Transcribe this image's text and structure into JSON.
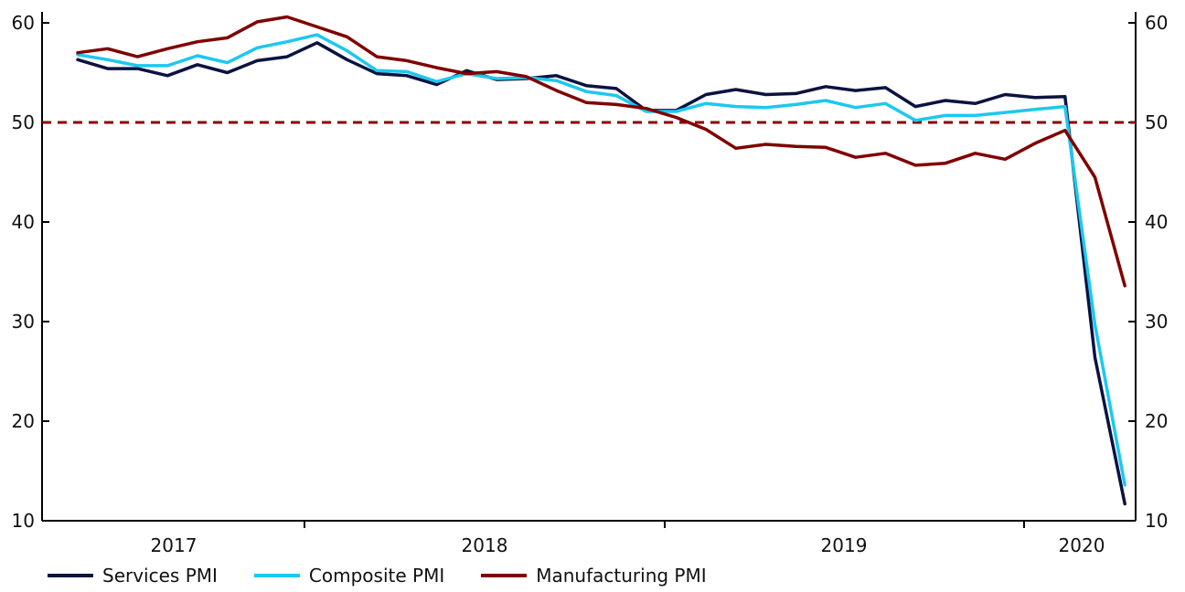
{
  "chart_data": {
    "type": "line",
    "title": "",
    "xlabel": "",
    "ylabel": "",
    "ylim": [
      10,
      60
    ],
    "y_ticks": [
      10,
      20,
      30,
      40,
      50,
      60
    ],
    "y_tick_labels": [
      "10",
      "20",
      "30",
      "40",
      "50",
      "60"
    ],
    "x_tick_labels": [
      "2017",
      "2018",
      "2019",
      "2020"
    ],
    "reference_line": {
      "value": 50,
      "style": "dashed",
      "color": "#8B0000"
    },
    "x_start": "2016-08",
    "series": [
      {
        "name": "Services PMI",
        "color": "#0B1340",
        "values": [
          56.3,
          55.4,
          55.4,
          54.7,
          55.8,
          55.0,
          56.2,
          56.6,
          58.0,
          56.3,
          54.9,
          54.7,
          53.8,
          55.2,
          54.3,
          54.4,
          54.7,
          53.7,
          53.4,
          51.2,
          51.2,
          52.8,
          53.3,
          52.8,
          52.9,
          53.6,
          53.2,
          53.5,
          51.6,
          52.2,
          51.9,
          52.8,
          52.5,
          52.6,
          26.4,
          11.7
        ]
      },
      {
        "name": "Composite PMI",
        "color": "#1CC8F0",
        "values": [
          56.8,
          56.3,
          55.7,
          55.7,
          56.7,
          56.0,
          57.5,
          58.1,
          58.8,
          57.2,
          55.2,
          55.1,
          54.1,
          54.9,
          54.4,
          54.5,
          54.2,
          53.1,
          52.7,
          51.1,
          51.1,
          51.9,
          51.6,
          51.5,
          51.8,
          52.2,
          51.5,
          51.9,
          50.2,
          50.7,
          50.7,
          51.0,
          51.3,
          51.6,
          29.7,
          13.6
        ]
      },
      {
        "name": "Manufacturing PMI",
        "color": "#800000",
        "values": [
          57.0,
          57.4,
          56.6,
          57.4,
          58.1,
          58.5,
          60.1,
          60.6,
          59.6,
          58.6,
          56.6,
          56.2,
          55.5,
          54.9,
          55.1,
          54.6,
          53.2,
          52.0,
          51.8,
          51.4,
          50.5,
          49.3,
          47.4,
          47.8,
          47.6,
          47.5,
          46.5,
          46.9,
          45.7,
          45.9,
          46.9,
          46.3,
          47.9,
          49.2,
          44.5,
          33.6
        ]
      }
    ],
    "legend": [
      "Services PMI",
      "Composite PMI",
      "Manufacturing PMI"
    ],
    "legend_position": "bottom-left"
  }
}
